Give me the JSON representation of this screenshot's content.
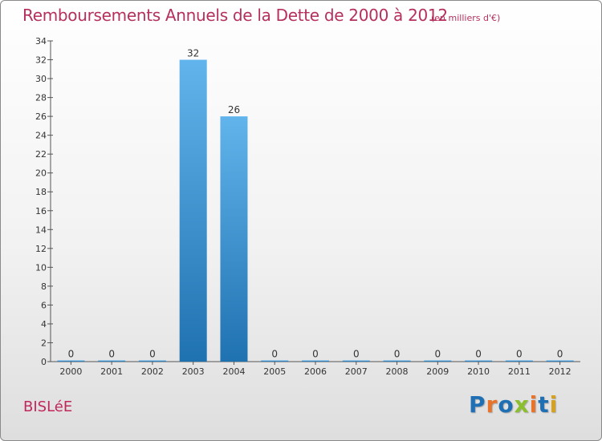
{
  "header": {
    "title": "Remboursements Annuels de la Dette de 2000 à 2012",
    "unit": "(en milliers d'€)"
  },
  "footer": {
    "commune": "BISLéE",
    "logo": "Proxiti"
  },
  "colors": {
    "bar_top": "#62b4ec",
    "bar_bottom": "#1f72b0",
    "title": "#b5305e",
    "logo_letters": [
      "#1f6fb5",
      "#e8742c",
      "#1f6fb5",
      "#8bbf2d",
      "#e8742c",
      "#1f6fb5",
      "#d6a21e"
    ]
  },
  "chart_data": {
    "type": "bar",
    "title": "Remboursements Annuels de la Dette de 2000 à 2012",
    "xlabel": "",
    "ylabel": "",
    "categories": [
      "2000",
      "2001",
      "2002",
      "2003",
      "2004",
      "2005",
      "2006",
      "2007",
      "2008",
      "2009",
      "2010",
      "2011",
      "2012"
    ],
    "values": [
      0,
      0,
      0,
      32,
      26,
      0,
      0,
      0,
      0,
      0,
      0,
      0,
      0
    ],
    "value_labels": [
      "0",
      "0",
      "0",
      "32",
      "26",
      "0",
      "0",
      "0",
      "0",
      "0",
      "0",
      "0",
      "0"
    ],
    "yticks": [
      "0",
      "2",
      "4",
      "6",
      "8",
      "10",
      "12",
      "14",
      "16",
      "18",
      "20",
      "22",
      "24",
      "26",
      "28",
      "30",
      "32",
      "34"
    ],
    "ylim": [
      0,
      34
    ],
    "grid": false,
    "legend": "none"
  }
}
